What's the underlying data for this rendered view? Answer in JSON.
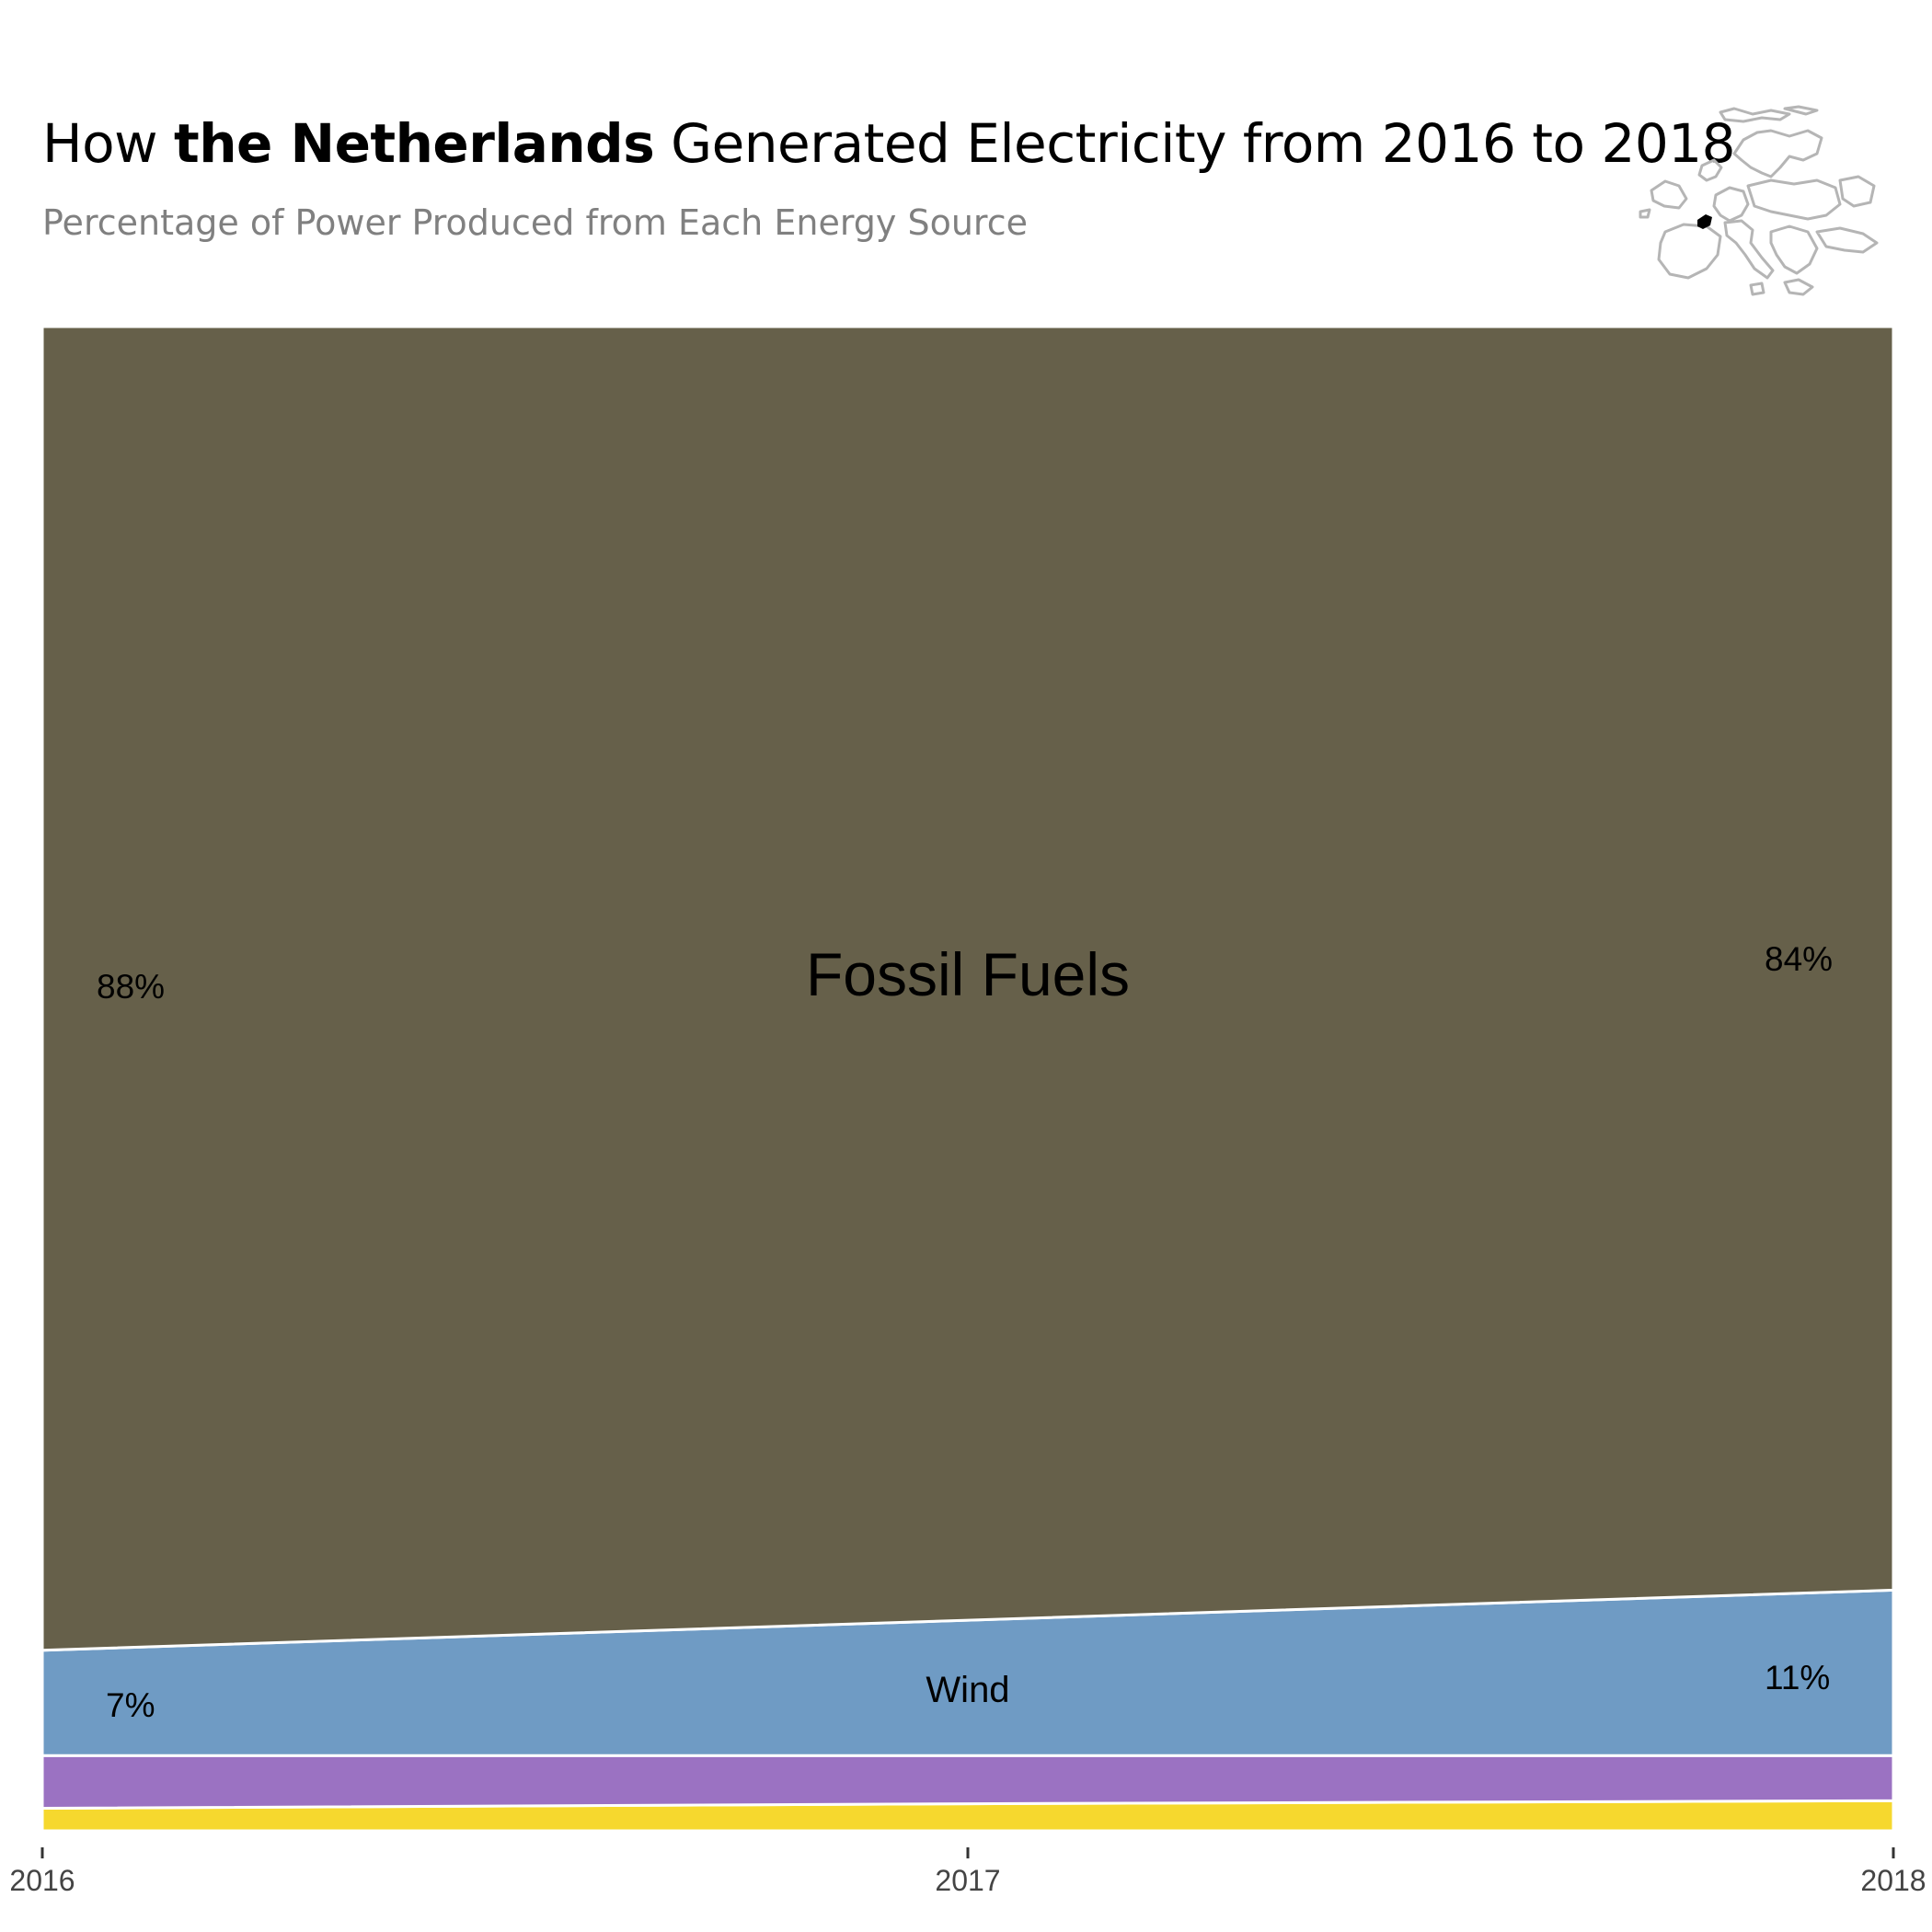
{
  "header": {
    "title_prefix": "How ",
    "title_bold": "the Netherlands",
    "title_suffix": " Generated Electricity from 2016 to 2018",
    "subtitle": "Percentage of Power Produced from Each Energy Source"
  },
  "map": {
    "icon": "europe-map-icon",
    "highlight_color": "#000000",
    "outline_color": "#b5b5b5"
  },
  "chart_data": {
    "type": "area",
    "stacked": true,
    "x": [
      2016,
      2017,
      2018
    ],
    "ylim": [
      0,
      100
    ],
    "grid": false,
    "legend": "none",
    "series": [
      {
        "name": "",
        "color": "#f6d82e",
        "values": [
          1.5,
          1.8,
          2.0
        ]
      },
      {
        "name": "",
        "color": "#9b72c2",
        "values": [
          3.5,
          3.2,
          3.0
        ]
      },
      {
        "name": "Wind",
        "color": "#6f9bc4",
        "values": [
          7,
          9,
          11
        ]
      },
      {
        "name": "Fossil Fuels",
        "color": "#66604a",
        "values": [
          88,
          86,
          84
        ]
      }
    ],
    "end_labels": {
      "fossil": {
        "start": "88%",
        "end": "84%"
      },
      "wind": {
        "start": "7%",
        "end": "11%"
      }
    },
    "tick_labels": [
      "2016",
      "2017",
      "2018"
    ]
  }
}
